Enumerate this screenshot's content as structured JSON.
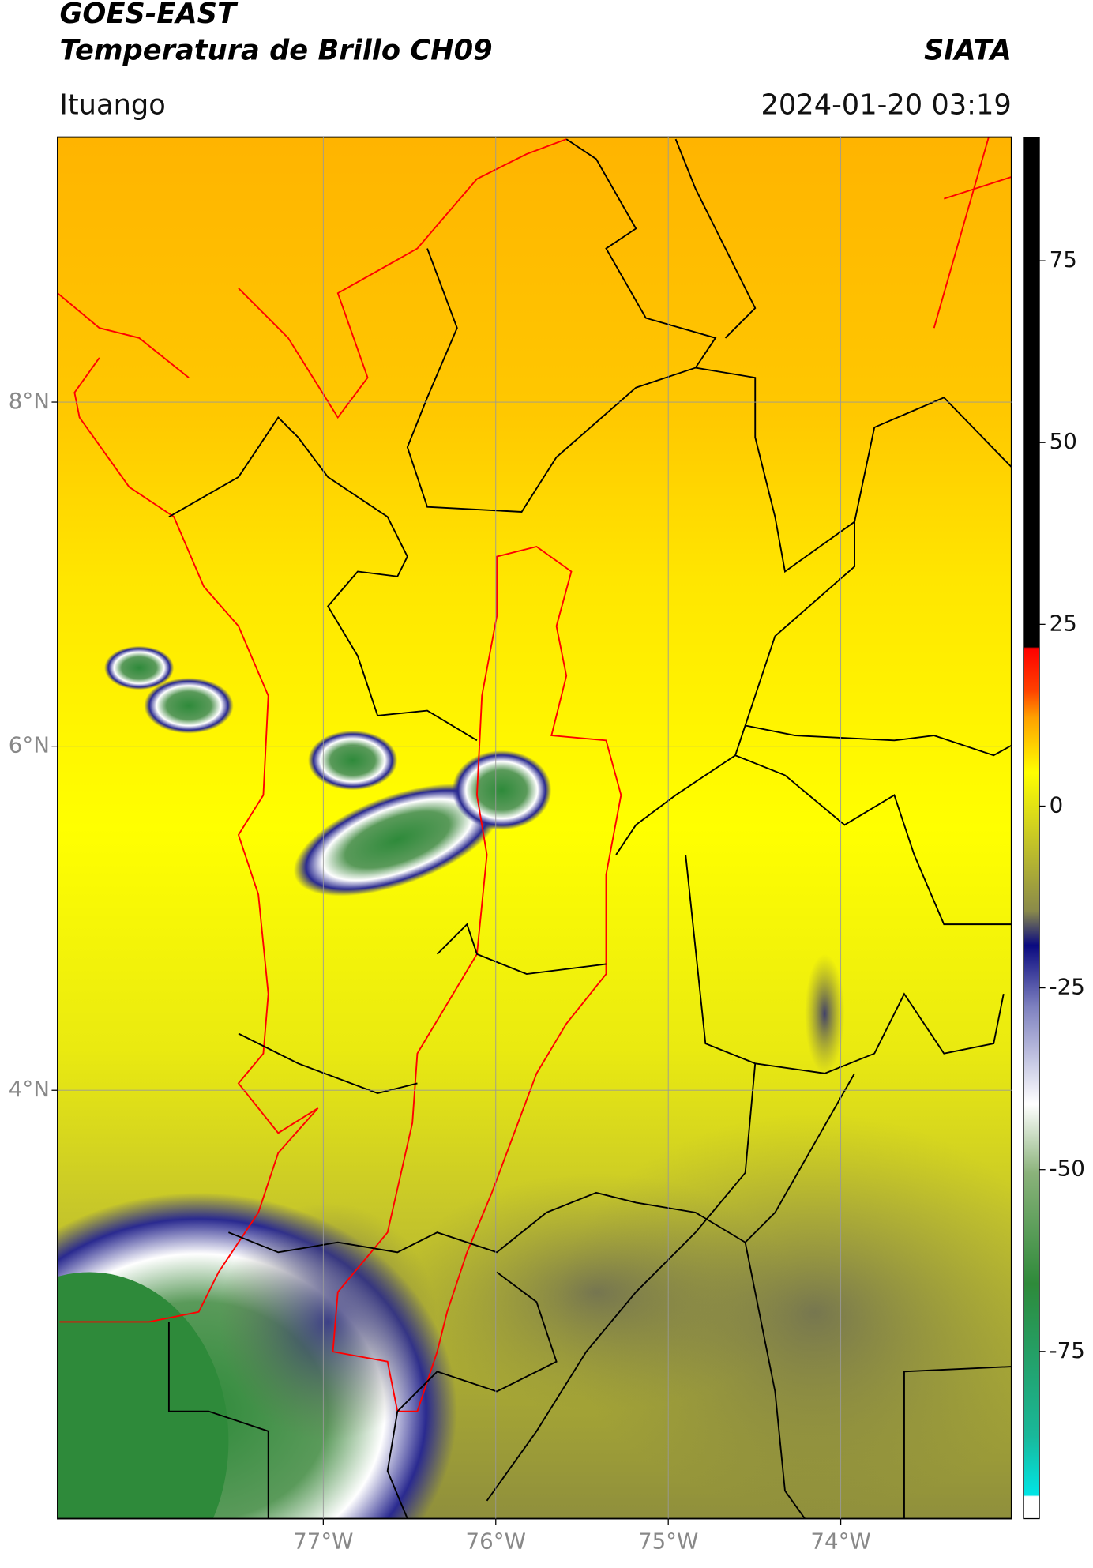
{
  "chart_data": {
    "type": "map",
    "title": "GOES-EAST",
    "subtitle": "Temperatura de Brillo CH09",
    "source": "SIATA",
    "location": "Ituango",
    "datetime": "2024-01-20 03:19",
    "xlim": [
      -78.54,
      -73.01
    ],
    "ylim": [
      1.51,
      9.54
    ],
    "xticks": [
      {
        "value": -77,
        "label": "77°W"
      },
      {
        "value": -76,
        "label": "76°W"
      },
      {
        "value": -75,
        "label": "75°W"
      },
      {
        "value": -74,
        "label": "74°W"
      }
    ],
    "yticks": [
      {
        "value": 4,
        "label": "4°N"
      },
      {
        "value": 6,
        "label": "6°N"
      },
      {
        "value": 8,
        "label": "8°N"
      }
    ],
    "clim": [
      -98,
      92
    ],
    "cticks": [
      -75,
      -50,
      -25,
      0,
      25,
      50,
      75
    ],
    "grid": true
  }
}
